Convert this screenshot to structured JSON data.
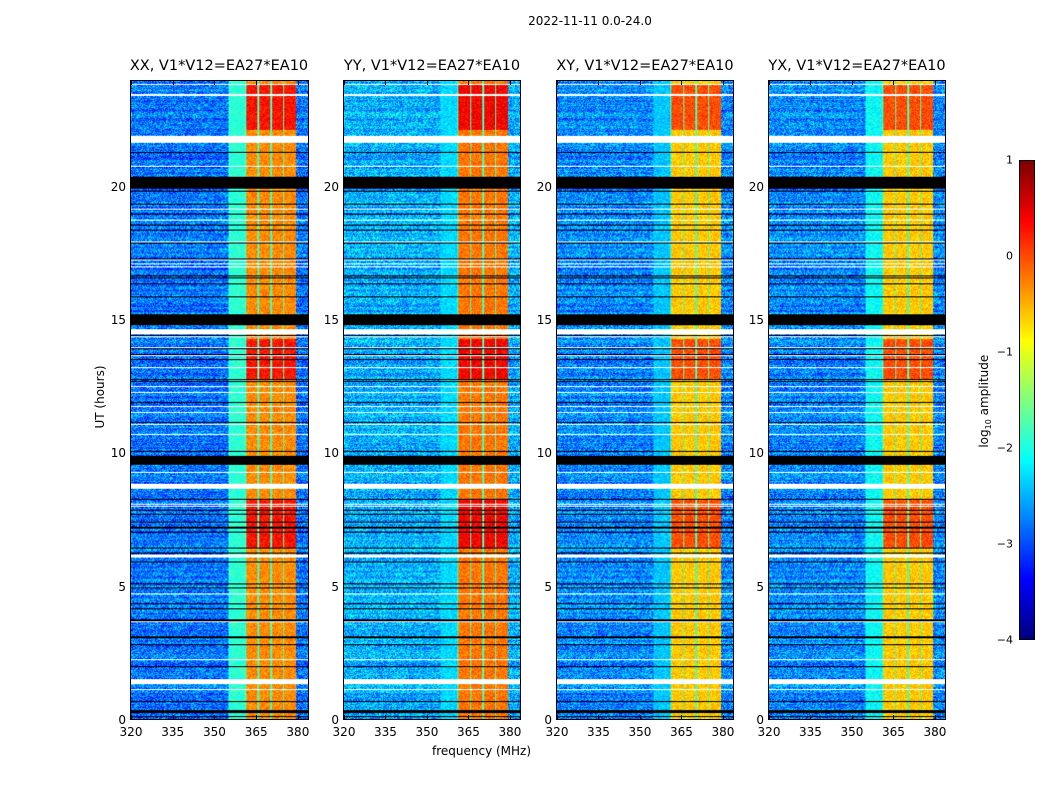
{
  "figure": {
    "suptitle": "2022-11-11 0.0-24.0",
    "xlabel": "frequency (MHz)",
    "ylabel": "UT (hours)",
    "colorbar": {
      "label_prefix": "log",
      "label_sub": "10",
      "label_suffix": " amplitude",
      "ticks": [
        "1",
        "0",
        "−1",
        "−2",
        "−3",
        "−4"
      ],
      "range": [
        -4,
        1
      ],
      "colormap": "jet"
    }
  },
  "chart_data": [
    {
      "type": "heatmap",
      "title": "XX, V1*V12=EA27*EA10",
      "xlabel": "frequency (MHz)",
      "ylabel": "UT (hours)",
      "xlim": [
        320,
        384
      ],
      "ylim": [
        0,
        24
      ],
      "xticks": [
        "320",
        "335",
        "350",
        "365",
        "380"
      ],
      "yticks": [
        "0",
        "5",
        "10",
        "15",
        "20"
      ],
      "z_label": "log10 amplitude",
      "z_range": [
        -4,
        1
      ],
      "background_level": -2.8,
      "rfi_band_mhz": [
        361,
        379.5
      ],
      "rfi_level": -0.3,
      "moderate_band_mhz": [
        355,
        361
      ],
      "moderate_level": -1.9
    },
    {
      "type": "heatmap",
      "title": "YY, V1*V12=EA27*EA10",
      "xlabel": "frequency (MHz)",
      "ylabel": "",
      "xlim": [
        320,
        384
      ],
      "ylim": [
        0,
        24
      ],
      "xticks": [
        "320",
        "335",
        "350",
        "365",
        "380"
      ],
      "yticks": [
        "0",
        "5",
        "10",
        "15",
        "20"
      ],
      "z_label": "log10 amplitude",
      "z_range": [
        -4,
        1
      ],
      "background_level": -2.5,
      "rfi_band_mhz": [
        361,
        379.5
      ],
      "rfi_level": -0.2,
      "moderate_band_mhz": [
        355,
        361
      ],
      "moderate_level": -2.3
    },
    {
      "type": "heatmap",
      "title": "XY, V1*V12=EA27*EA10",
      "xlabel": "frequency (MHz)",
      "ylabel": "",
      "xlim": [
        320,
        384
      ],
      "ylim": [
        0,
        24
      ],
      "xticks": [
        "320",
        "335",
        "350",
        "365",
        "380"
      ],
      "yticks": [
        "0",
        "5",
        "10",
        "15",
        "20"
      ],
      "z_label": "log10 amplitude",
      "z_range": [
        -4,
        1
      ],
      "background_level": -2.7,
      "rfi_band_mhz": [
        361,
        379.5
      ],
      "rfi_level": -0.6,
      "moderate_band_mhz": [
        355,
        361
      ],
      "moderate_level": -2.4
    },
    {
      "type": "heatmap",
      "title": "YX, V1*V12=EA27*EA10",
      "xlabel": "frequency (MHz)",
      "ylabel": "",
      "xlim": [
        320,
        384
      ],
      "ylim": [
        0,
        24
      ],
      "xticks": [
        "320",
        "335",
        "350",
        "365",
        "380"
      ],
      "yticks": [
        "0",
        "5",
        "10",
        "15",
        "20"
      ],
      "z_label": "log10 amplitude",
      "z_range": [
        -4,
        1
      ],
      "background_level": -2.7,
      "rfi_band_mhz": [
        361,
        379.5
      ],
      "rfi_level": -0.6,
      "moderate_band_mhz": [
        355,
        361
      ],
      "moderate_level": -2.1
    }
  ],
  "flags": {
    "flagged_black_ut_ranges": [
      [
        20.0,
        20.4
      ],
      [
        14.9,
        15.2
      ],
      [
        9.6,
        9.9
      ],
      [
        0.25,
        0.35
      ]
    ],
    "flagged_white_ut_ranges": [
      [
        21.7,
        21.95
      ],
      [
        14.5,
        14.65
      ],
      [
        8.7,
        8.85
      ],
      [
        1.4,
        1.5
      ],
      [
        6.1,
        6.2
      ]
    ],
    "strong_rfi_ut_ranges": [
      [
        22.2,
        23.9
      ],
      [
        12.8,
        14.3
      ],
      [
        6.5,
        8.3
      ]
    ]
  }
}
